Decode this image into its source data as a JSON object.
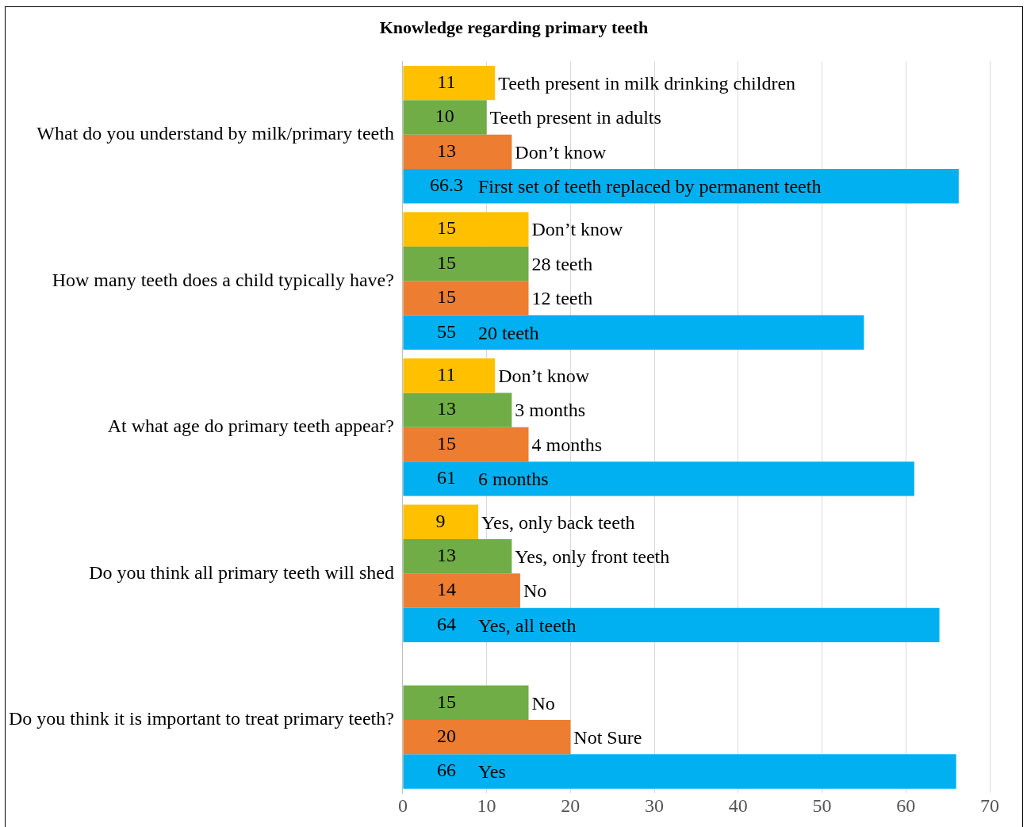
{
  "chart_data": {
    "type": "bar",
    "orientation": "horizontal",
    "title": "Knowledge regarding primary teeth",
    "categories": [
      "What do you understand by milk/primary teeth",
      "How many teeth does a child typically have?",
      "At what age do primary teeth appear?",
      "Do you think all primary teeth will shed",
      "Do you think it is important to treat primary teeth?"
    ],
    "series": [
      {
        "color": "#ffc000",
        "values": [
          11,
          15,
          11,
          9,
          null
        ]
      },
      {
        "color": "#70ad47",
        "values": [
          10,
          15,
          13,
          13,
          15
        ]
      },
      {
        "color": "#ed7d31",
        "values": [
          13,
          15,
          15,
          14,
          20
        ]
      },
      {
        "color": "#00b0f0",
        "values": [
          66.3,
          55,
          61,
          64,
          66
        ]
      }
    ],
    "xlim": [
      0,
      70
    ],
    "xticks": [
      0,
      10,
      20,
      30,
      40,
      50,
      60,
      70
    ],
    "grid": "x",
    "legend": false,
    "data_labels": true,
    "annotations": [
      {
        "text": "Teeth present in milk drinking children",
        "x": 11,
        "y": "What do you understand by milk/primary teeth"
      },
      {
        "text": "Teeth present in adults",
        "x": 10,
        "y": "What do you understand by milk/primary teeth"
      },
      {
        "text": "Don’t know",
        "x": 13,
        "y": "What do you understand by milk/primary teeth"
      },
      "First set of teeth replaced by permanent teeth",
      {
        "text": "Don’t know",
        "x": 15,
        "y": "How many teeth does a child typically have?"
      },
      {
        "text": "28 teeth",
        "x": 15,
        "y": "How many teeth does a child typically have?"
      },
      {
        "text": "12 teeth",
        "x": 15,
        "y": "How many teeth does a child typically have?"
      },
      "20 teeth",
      {
        "text": "Don’t know",
        "x": 11,
        "y": "At what age do primary teeth appear?"
      },
      {
        "text": "3 months",
        "x": 13,
        "y": "At what age do primary teeth appear?"
      },
      {
        "text": "4 months",
        "x": 15,
        "y": "At what age do primary teeth appear?"
      },
      "6 months",
      {
        "text": "Yes, only back teeth",
        "x": 9,
        "y": "Do you think all primary teeth will shed"
      },
      {
        "text": "Yes, only front teeth",
        "x": 13,
        "y": "Do you think all primary teeth will shed"
      },
      {
        "text": "No",
        "x": 14,
        "y": "Do you think all primary teeth will shed"
      },
      "Yes, all teeth",
      {
        "text": "No",
        "x": 15,
        "y": "Do you think it is important to treat primary teeth?"
      },
      {
        "text": "Not Sure",
        "x": 20,
        "y": "Do you think it is important to treat primary teeth?"
      },
      "Yes"
    ]
  }
}
